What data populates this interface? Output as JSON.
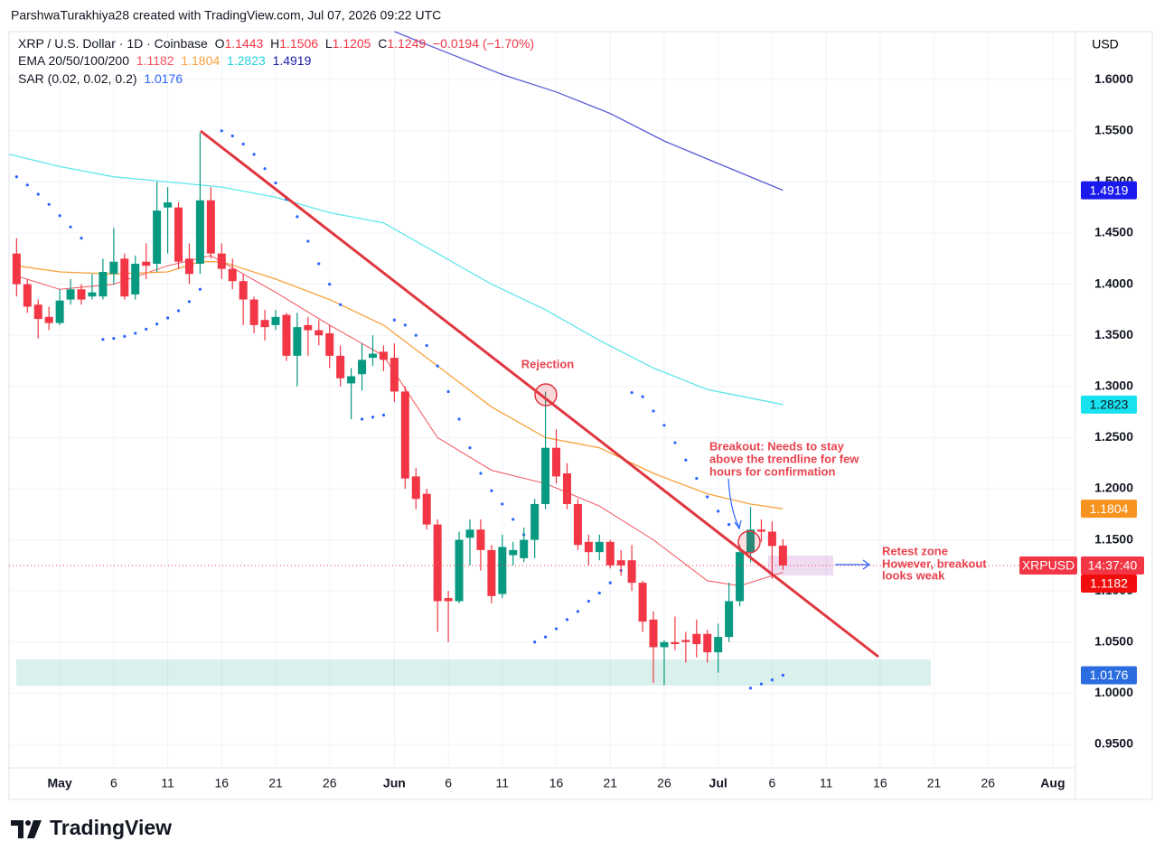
{
  "header": "ParshwaTurakhiya28 created with TradingView.com, Jul 07, 2026 09:22 UTC",
  "brand": "TradingView",
  "chart_data": {
    "type": "candlestick",
    "symbol": "XRP / U.S. Dollar · 1D · Coinbase",
    "ohlc_labels": [
      "O",
      "H",
      "L",
      "C"
    ],
    "change_label": "−0.0194 (−1.70%)",
    "ema_label": "EMA 20/50/100/200",
    "sar_label": "SAR (0.02, 0.02, 0.2)",
    "currency": "USD",
    "ticker": "XRPUSD",
    "countdown": "14:37:40",
    "annotations": {
      "rejection": "Rejection",
      "breakout": [
        "Breakout: Needs to stay",
        "above the trendline for few",
        "hours for confirmation"
      ],
      "retest": [
        "Retest zone",
        "However, breakout",
        "looks weak"
      ]
    },
    "up_color": "#089981",
    "down_color": "#f23645",
    "grid": true,
    "xlim": [
      -4.7,
      94.1
    ],
    "xticks": [
      {
        "value": 0,
        "label": "May"
      },
      {
        "value": 5,
        "label": "6"
      },
      {
        "value": 10,
        "label": "11"
      },
      {
        "value": 15,
        "label": "16"
      },
      {
        "value": 20,
        "label": "21"
      },
      {
        "value": 25,
        "label": "26"
      },
      {
        "value": 31,
        "label": "Jun"
      },
      {
        "value": 36,
        "label": "6"
      },
      {
        "value": 41,
        "label": "11"
      },
      {
        "value": 46,
        "label": "16"
      },
      {
        "value": 51,
        "label": "21"
      },
      {
        "value": 56,
        "label": "26"
      },
      {
        "value": 61,
        "label": "Jul"
      },
      {
        "value": 66,
        "label": "6"
      },
      {
        "value": 71,
        "label": "11"
      },
      {
        "value": 76,
        "label": "16"
      },
      {
        "value": 81,
        "label": "21"
      },
      {
        "value": 86,
        "label": "26"
      },
      {
        "value": 92,
        "label": "Aug"
      }
    ],
    "ylim": [
      0.927,
      1.647
    ],
    "yticks": [
      {
        "value": 0.95,
        "label": "0.9500"
      },
      {
        "value": 1.0,
        "label": "1.0000"
      },
      {
        "value": 1.05,
        "label": "1.0500"
      },
      {
        "value": 1.1,
        "label": "1.1000"
      },
      {
        "value": 1.15,
        "label": "1.1500"
      },
      {
        "value": 1.2,
        "label": "1.2000"
      },
      {
        "value": 1.25,
        "label": "1.2500"
      },
      {
        "value": 1.3,
        "label": "1.3000"
      },
      {
        "value": 1.35,
        "label": "1.3500"
      },
      {
        "value": 1.4,
        "label": "1.4000"
      },
      {
        "value": 1.45,
        "label": "1.4500"
      },
      {
        "value": 1.5,
        "label": "1.5000"
      },
      {
        "value": 1.55,
        "label": "1.5500"
      },
      {
        "value": 1.6,
        "label": "1.6000"
      }
    ],
    "candles": {
      "x": [
        -4,
        -3,
        -2,
        -1,
        0,
        1,
        2,
        3,
        4,
        5,
        6,
        7,
        8,
        9,
        10,
        11,
        12,
        13,
        14,
        15,
        16,
        17,
        18,
        19,
        20,
        21,
        22,
        23,
        24,
        25,
        26,
        27,
        28,
        29,
        30,
        31,
        32,
        33,
        34,
        35,
        36,
        37,
        38,
        39,
        40,
        41,
        42,
        43,
        44,
        45,
        46,
        47,
        48,
        49,
        50,
        51,
        52,
        53,
        54,
        55,
        56,
        57,
        58,
        59,
        60,
        61,
        62,
        63,
        64,
        65,
        66,
        67
      ],
      "open": [
        1.43,
        1.4,
        1.38,
        1.368,
        1.362,
        1.385,
        1.395,
        1.388,
        1.388,
        1.41,
        1.425,
        1.39,
        1.422,
        1.42,
        1.475,
        1.475,
        1.425,
        1.42,
        1.482,
        1.43,
        1.415,
        1.403,
        1.385,
        1.365,
        1.36,
        1.37,
        1.33,
        1.36,
        1.355,
        1.352,
        1.33,
        1.303,
        1.312,
        1.328,
        1.334,
        1.328,
        1.295,
        1.212,
        1.195,
        1.165,
        1.093,
        1.09,
        1.152,
        1.16,
        1.14,
        1.097,
        1.135,
        1.132,
        1.15,
        1.185,
        1.24,
        1.215,
        1.185,
        1.148,
        1.138,
        1.148,
        1.13,
        1.13,
        1.108,
        1.072,
        1.045,
        1.05,
        1.052,
        1.058,
        1.058,
        1.04,
        1.055,
        1.09,
        1.138,
        1.16,
        1.158,
        1.1443
      ],
      "high": [
        1.445,
        1.405,
        1.385,
        1.378,
        1.395,
        1.405,
        1.4,
        1.41,
        1.425,
        1.455,
        1.43,
        1.428,
        1.44,
        1.5,
        1.495,
        1.48,
        1.44,
        1.548,
        1.495,
        1.44,
        1.425,
        1.41,
        1.388,
        1.375,
        1.375,
        1.372,
        1.372,
        1.368,
        1.365,
        1.36,
        1.34,
        1.318,
        1.342,
        1.35,
        1.34,
        1.342,
        1.3,
        1.22,
        1.2,
        1.17,
        1.1,
        1.158,
        1.17,
        1.17,
        1.145,
        1.155,
        1.148,
        1.162,
        1.19,
        1.295,
        1.258,
        1.225,
        1.19,
        1.155,
        1.155,
        1.15,
        1.14,
        1.145,
        1.11,
        1.08,
        1.052,
        1.075,
        1.06,
        1.072,
        1.062,
        1.068,
        1.108,
        1.145,
        1.182,
        1.17,
        1.168,
        1.1506
      ],
      "low": [
        1.388,
        1.372,
        1.347,
        1.355,
        1.36,
        1.38,
        1.38,
        1.385,
        1.385,
        1.4,
        1.385,
        1.385,
        1.405,
        1.412,
        1.43,
        1.415,
        1.4,
        1.41,
        1.425,
        1.405,
        1.395,
        1.36,
        1.352,
        1.345,
        1.355,
        1.325,
        1.3,
        1.33,
        1.34,
        1.318,
        1.3,
        1.268,
        1.296,
        1.32,
        1.315,
        1.285,
        1.2,
        1.18,
        1.16,
        1.06,
        1.05,
        1.088,
        1.125,
        1.12,
        1.088,
        1.093,
        1.125,
        1.128,
        1.132,
        1.18,
        1.205,
        1.18,
        1.14,
        1.125,
        1.13,
        1.122,
        1.115,
        1.1,
        1.06,
        1.01,
        1.008,
        1.042,
        1.03,
        1.035,
        1.03,
        1.02,
        1.05,
        1.085,
        1.128,
        1.148,
        1.112,
        1.1205
      ],
      "close": [
        1.4,
        1.378,
        1.366,
        1.362,
        1.384,
        1.395,
        1.385,
        1.392,
        1.412,
        1.422,
        1.388,
        1.42,
        1.418,
        1.472,
        1.48,
        1.422,
        1.41,
        1.482,
        1.43,
        1.415,
        1.403,
        1.385,
        1.36,
        1.358,
        1.368,
        1.33,
        1.358,
        1.355,
        1.35,
        1.33,
        1.308,
        1.31,
        1.326,
        1.332,
        1.326,
        1.295,
        1.21,
        1.19,
        1.165,
        1.09,
        1.09,
        1.15,
        1.16,
        1.14,
        1.095,
        1.143,
        1.14,
        1.15,
        1.185,
        1.24,
        1.212,
        1.185,
        1.145,
        1.138,
        1.148,
        1.125,
        1.125,
        1.108,
        1.07,
        1.045,
        1.05,
        1.048,
        1.05,
        1.048,
        1.04,
        1.055,
        1.09,
        1.138,
        1.16,
        1.158,
        1.144,
        1.1249
      ]
    },
    "lines": [
      {
        "color": "#f2525c",
        "badge_color": "#f20d0d",
        "x": [
          -4,
          0,
          5,
          10,
          14,
          20,
          25,
          30,
          35,
          40,
          45,
          50,
          55,
          60,
          63,
          67
        ],
        "values": [
          1.408,
          1.395,
          1.4,
          1.418,
          1.428,
          1.392,
          1.36,
          1.33,
          1.25,
          1.218,
          1.205,
          1.183,
          1.15,
          1.11,
          1.105,
          1.1182
        ]
      },
      {
        "color": "#f7a23c",
        "badge_color": "#f7931e",
        "x": [
          -4,
          0,
          5,
          10,
          13,
          15,
          20,
          25,
          30,
          35,
          40,
          45,
          50,
          55,
          60,
          64,
          67
        ],
        "values": [
          1.418,
          1.412,
          1.41,
          1.412,
          1.422,
          1.422,
          1.405,
          1.385,
          1.36,
          1.32,
          1.28,
          1.25,
          1.24,
          1.215,
          1.195,
          1.185,
          1.1804
        ]
      },
      {
        "color": "#5fe6ea",
        "badge_color": "#16e3ef",
        "x": [
          -4.7,
          0,
          5,
          10,
          15,
          20,
          25,
          30,
          35,
          40,
          45,
          50,
          55,
          60,
          67
        ],
        "values": [
          1.527,
          1.515,
          1.505,
          1.5,
          1.495,
          1.485,
          1.47,
          1.46,
          1.43,
          1.4,
          1.375,
          1.345,
          1.318,
          1.297,
          1.2823
        ]
      },
      {
        "color": "#5b5bd6",
        "badge_color": "#1a1aee",
        "x": [
          31,
          36,
          41,
          46,
          51,
          56,
          61,
          67
        ],
        "values": [
          1.647,
          1.626,
          1.605,
          1.588,
          1.567,
          1.54,
          1.518,
          1.4919
        ]
      }
    ],
    "sar": {
      "color": "#2962ff",
      "badge_color": "#2b6de0",
      "x": [
        -4,
        -3,
        -2,
        -1,
        0,
        1,
        2,
        4,
        5,
        6,
        7,
        8,
        9,
        10,
        11,
        12,
        13,
        15,
        16,
        17,
        18,
        19,
        20,
        21,
        22,
        23,
        24,
        25,
        26,
        28,
        29,
        30,
        31,
        32,
        33,
        34,
        35,
        36,
        37,
        38,
        39,
        40,
        41,
        42,
        43,
        44,
        45,
        46,
        47,
        48,
        49,
        50,
        51,
        52,
        53,
        54,
        55,
        56,
        57,
        58,
        59,
        60,
        61,
        62,
        64,
        65,
        66,
        67
      ],
      "values": [
        1.505,
        1.497,
        1.488,
        1.478,
        1.467,
        1.456,
        1.445,
        1.346,
        1.347,
        1.349,
        1.352,
        1.356,
        1.361,
        1.367,
        1.374,
        1.383,
        1.395,
        1.55,
        1.545,
        1.537,
        1.527,
        1.513,
        1.499,
        1.483,
        1.466,
        1.442,
        1.42,
        1.4,
        1.38,
        1.268,
        1.27,
        1.272,
        1.365,
        1.36,
        1.35,
        1.34,
        1.32,
        1.295,
        1.268,
        1.24,
        1.215,
        1.198,
        1.185,
        1.17,
        1.155,
        1.05,
        1.055,
        1.063,
        1.072,
        1.08,
        1.09,
        1.098,
        1.108,
        1.12,
        1.294,
        1.29,
        1.276,
        1.262,
        1.245,
        1.228,
        1.21,
        1.192,
        1.178,
        1.165,
        1.005,
        1.009,
        1.013,
        1.0176
      ]
    }
  }
}
